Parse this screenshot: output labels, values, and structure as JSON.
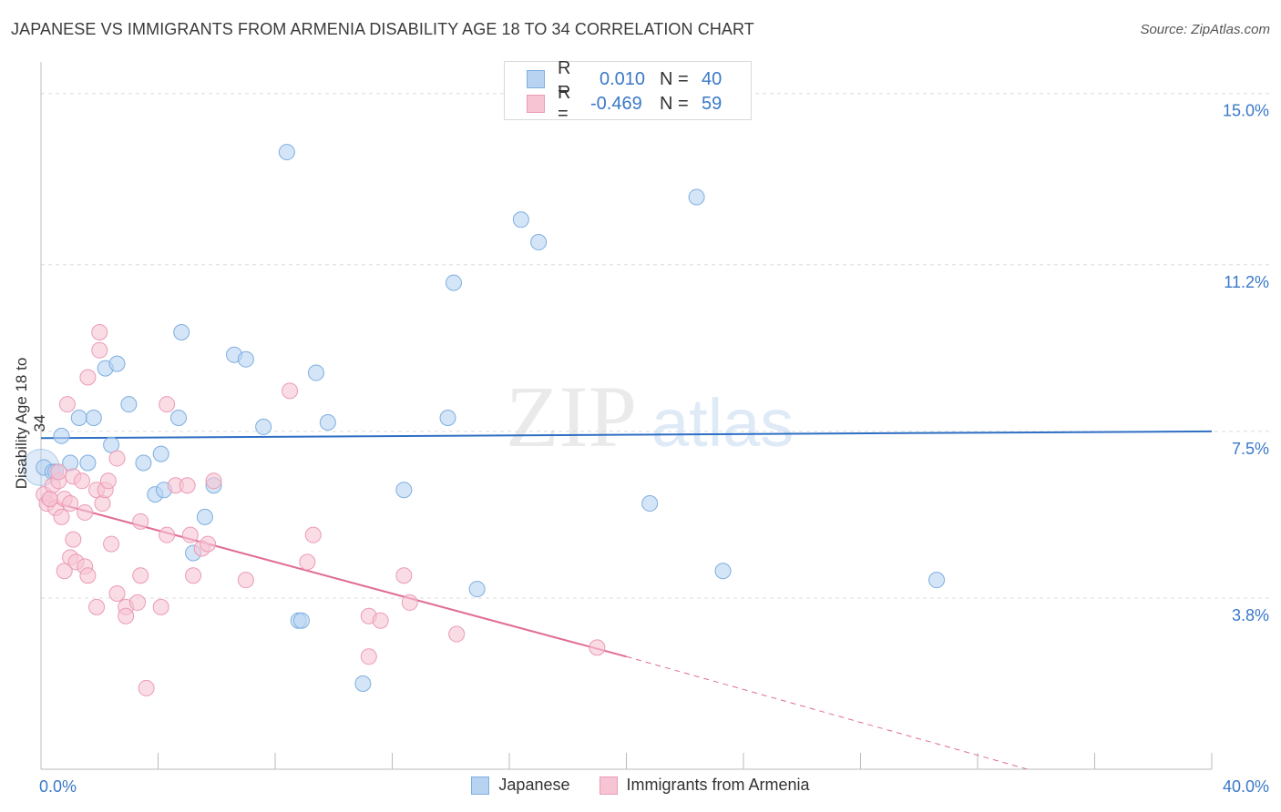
{
  "title": "JAPANESE VS IMMIGRANTS FROM ARMENIA DISABILITY AGE 18 TO 34 CORRELATION CHART",
  "source": "Source: ZipAtlas.com",
  "watermark": {
    "zip": "ZIP",
    "atlas": "atlas"
  },
  "legend": {
    "r_label": "R =",
    "n_label": "N =",
    "rows": [
      {
        "r": "0.010",
        "n": "40"
      },
      {
        "r": "-0.469",
        "n": "59"
      }
    ]
  },
  "colors": {
    "japanese_fill": "#b8d3f2",
    "japanese_stroke": "#7eaee0",
    "japanese_line": "#2f6fc4",
    "armenia_fill": "#f7c4d4",
    "armenia_stroke": "#eb9bb6",
    "armenia_line": "#e06c96",
    "tick_label": "#3a78c9"
  },
  "chart_data": {
    "type": "scatter",
    "title": "JAPANESE VS IMMIGRANTS FROM ARMENIA DISABILITY AGE 18 TO 34 CORRELATION CHART",
    "xlabel": "",
    "ylabel": "Disability Age 18 to 34",
    "xlim": [
      0,
      40
    ],
    "ylim": [
      0,
      15.5
    ],
    "x_tick_labels": [
      "0.0%",
      "40.0%"
    ],
    "y_ticks": [
      3.8,
      7.5,
      11.2,
      15.0
    ],
    "y_tick_labels": [
      "3.8%",
      "7.5%",
      "11.2%",
      "15.0%"
    ],
    "grid": "horizontal dashed",
    "legend_position": "top-center",
    "series": [
      {
        "name": "Japanese",
        "r": 0.01,
        "n": 40,
        "trend": {
          "x": [
            0,
            40
          ],
          "y": [
            7.35,
            7.5
          ]
        },
        "points": [
          [
            0.1,
            6.7
          ],
          [
            0.4,
            6.6
          ],
          [
            0.5,
            6.6
          ],
          [
            0.7,
            7.4
          ],
          [
            1.0,
            6.8
          ],
          [
            1.3,
            7.8
          ],
          [
            1.6,
            6.8
          ],
          [
            1.8,
            7.8
          ],
          [
            2.4,
            7.2
          ],
          [
            2.2,
            8.9
          ],
          [
            2.6,
            9.0
          ],
          [
            3.0,
            8.1
          ],
          [
            3.5,
            6.8
          ],
          [
            3.9,
            6.1
          ],
          [
            4.1,
            7.0
          ],
          [
            4.2,
            6.2
          ],
          [
            4.7,
            7.8
          ],
          [
            4.8,
            9.7
          ],
          [
            5.2,
            4.8
          ],
          [
            5.6,
            5.6
          ],
          [
            5.9,
            6.3
          ],
          [
            6.6,
            9.2
          ],
          [
            7.0,
            9.1
          ],
          [
            7.6,
            7.6
          ],
          [
            8.4,
            13.7
          ],
          [
            8.8,
            3.3
          ],
          [
            8.9,
            3.3
          ],
          [
            9.4,
            8.8
          ],
          [
            9.8,
            7.7
          ],
          [
            11.0,
            1.9
          ],
          [
            12.4,
            6.2
          ],
          [
            13.9,
            7.8
          ],
          [
            14.1,
            10.8
          ],
          [
            14.9,
            4.0
          ],
          [
            16.4,
            12.2
          ],
          [
            17.0,
            11.7
          ],
          [
            20.8,
            5.9
          ],
          [
            22.4,
            12.7
          ],
          [
            23.3,
            4.4
          ],
          [
            30.6,
            4.2
          ]
        ]
      },
      {
        "name": "Immigrants from Armenia",
        "r": -0.469,
        "n": 59,
        "trend": {
          "x": [
            0,
            20
          ],
          "y": [
            6.0,
            2.5
          ]
        },
        "trend_dashed": {
          "x": [
            20,
            33.7
          ],
          "y": [
            2.5,
            0.0
          ]
        },
        "points": [
          [
            0.1,
            6.1
          ],
          [
            0.2,
            5.9
          ],
          [
            0.3,
            6.0
          ],
          [
            0.4,
            6.3
          ],
          [
            0.5,
            5.8
          ],
          [
            0.6,
            6.4
          ],
          [
            0.6,
            6.6
          ],
          [
            0.7,
            5.6
          ],
          [
            0.8,
            4.4
          ],
          [
            0.8,
            6.0
          ],
          [
            0.9,
            8.1
          ],
          [
            1.0,
            4.7
          ],
          [
            1.0,
            5.9
          ],
          [
            1.1,
            5.1
          ],
          [
            1.1,
            6.5
          ],
          [
            1.2,
            4.6
          ],
          [
            1.4,
            6.4
          ],
          [
            1.5,
            5.7
          ],
          [
            1.5,
            4.5
          ],
          [
            1.6,
            4.3
          ],
          [
            1.6,
            8.7
          ],
          [
            1.9,
            6.2
          ],
          [
            1.9,
            3.6
          ],
          [
            2.0,
            9.7
          ],
          [
            2.0,
            9.3
          ],
          [
            2.1,
            5.9
          ],
          [
            2.2,
            6.2
          ],
          [
            2.4,
            5.0
          ],
          [
            2.6,
            3.9
          ],
          [
            2.6,
            6.9
          ],
          [
            2.9,
            3.6
          ],
          [
            2.9,
            3.4
          ],
          [
            3.3,
            3.7
          ],
          [
            3.4,
            5.5
          ],
          [
            3.4,
            4.3
          ],
          [
            3.6,
            1.8
          ],
          [
            4.1,
            3.6
          ],
          [
            4.3,
            5.2
          ],
          [
            4.3,
            8.1
          ],
          [
            4.6,
            6.3
          ],
          [
            5.1,
            5.2
          ],
          [
            5.2,
            4.3
          ],
          [
            5.5,
            4.9
          ],
          [
            5.7,
            5.0
          ],
          [
            5.9,
            6.4
          ],
          [
            7.0,
            4.2
          ],
          [
            8.5,
            8.4
          ],
          [
            9.1,
            4.6
          ],
          [
            9.3,
            5.2
          ],
          [
            11.2,
            3.4
          ],
          [
            11.2,
            2.5
          ],
          [
            11.6,
            3.3
          ],
          [
            12.4,
            4.3
          ],
          [
            12.6,
            3.7
          ],
          [
            14.2,
            3.0
          ],
          [
            19.0,
            2.7
          ],
          [
            5.0,
            6.3
          ],
          [
            2.3,
            6.4
          ],
          [
            0.3,
            6.0
          ]
        ]
      }
    ]
  }
}
